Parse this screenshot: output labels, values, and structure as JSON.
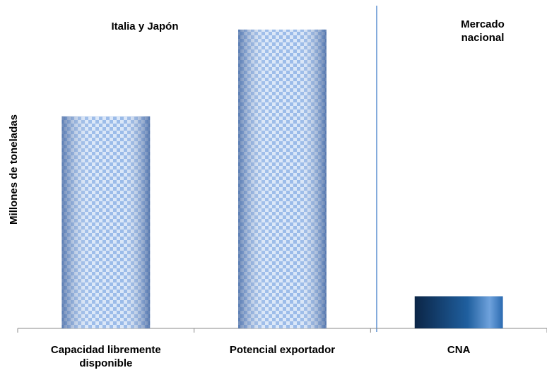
{
  "chart_data": {
    "type": "bar",
    "y_label": "Millones de toneladas",
    "annotations": [
      "Italia y Japón",
      "Mercado nacional"
    ],
    "categories": [
      "Capacidad libremente disponible",
      "Potencial exportador",
      "CNA"
    ],
    "values": [
      66,
      93,
      10
    ],
    "colors": [
      "#8fb3e6",
      "#8fb3e6",
      "#1f5f9f"
    ],
    "patterns": [
      "checker",
      "checker",
      "solid"
    ],
    "ylim": [
      0,
      100
    ]
  }
}
